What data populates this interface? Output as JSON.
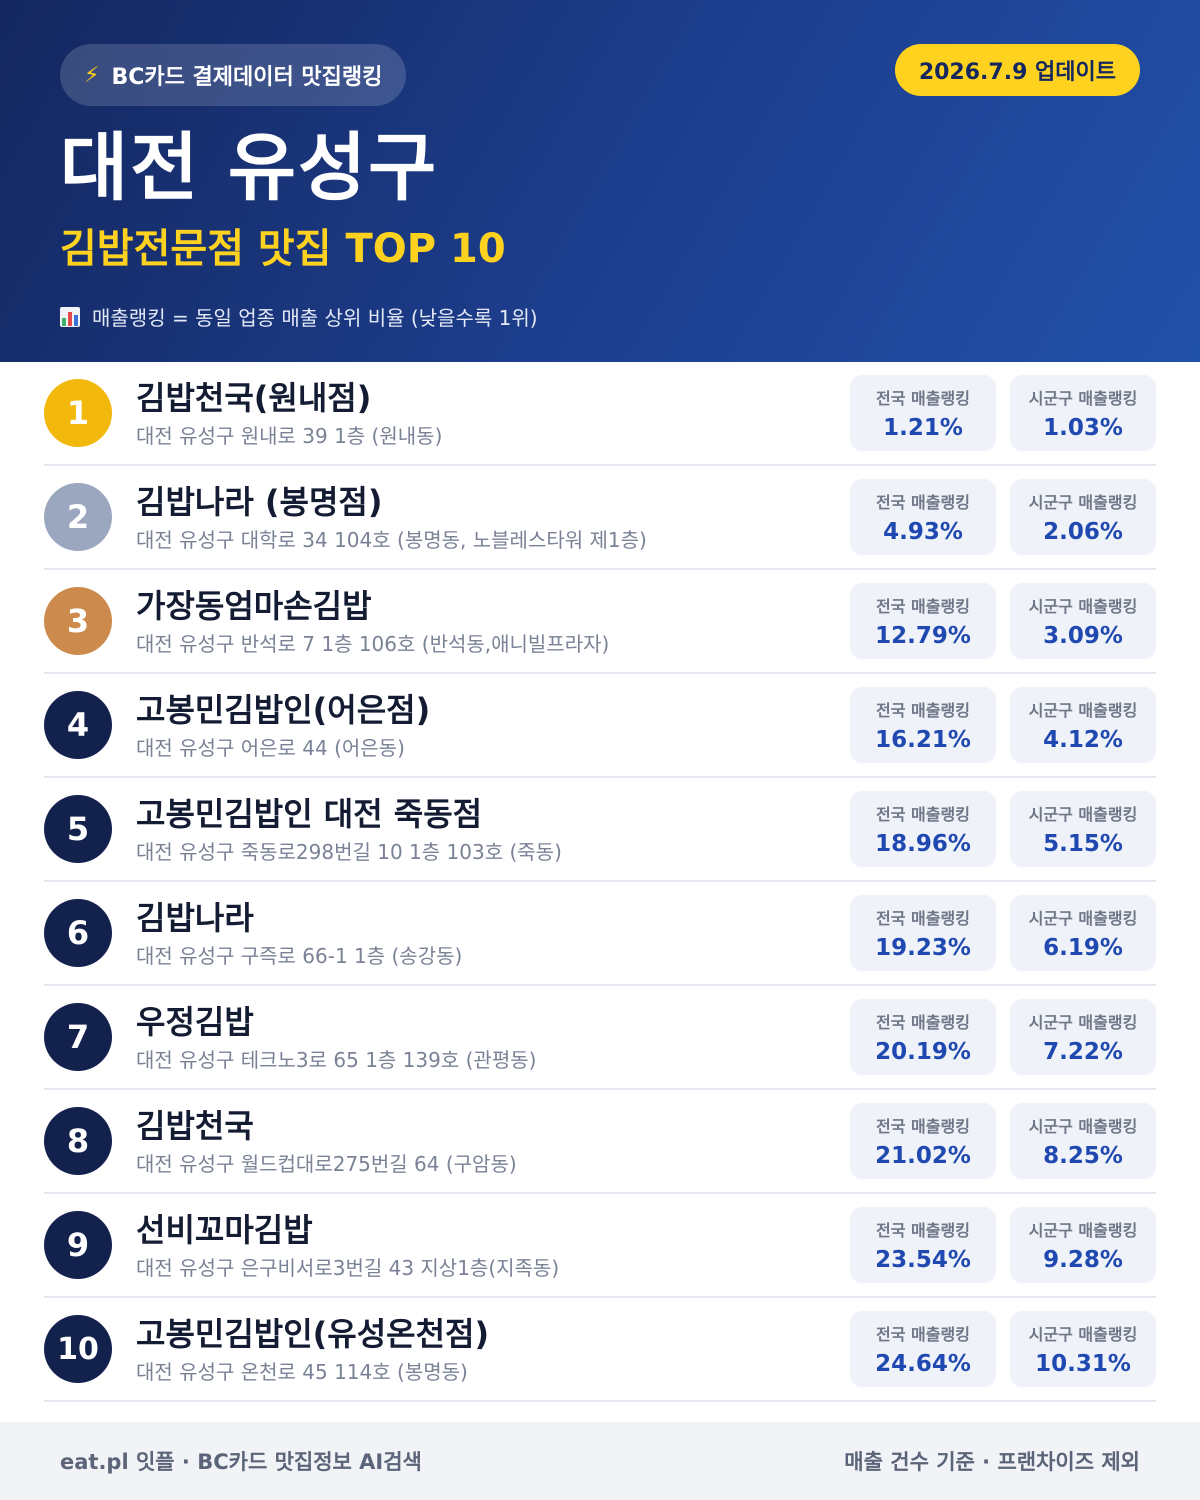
{
  "header": {
    "badge_icon": "lightning-icon",
    "badge_label": "BC카드 결제데이터 맛집랭킹",
    "update_label": "2026.7.9 업데이트",
    "region": "대전 유성구",
    "category": "김밥전문점 맛집 TOP 10",
    "note_icon": "bar-chart-icon",
    "note": "매출랭킹 = 동일 업종 매출 상위 비율 (낮을수록 1위)",
    "accent_color": "#ffd21f",
    "gradient_colors": [
      "#14275f",
      "#2150a8"
    ]
  },
  "labels": {
    "national": "전국 매출랭킹",
    "district": "시군구 매출랭킹"
  },
  "rank_colors": {
    "gold": "#f2b90c",
    "silver": "#9ba7bf",
    "bronze": "#cd8a4d",
    "default": "#13214d"
  },
  "restaurants": [
    {
      "rank": "1",
      "name": "김밥천국(원내점)",
      "address": "대전 유성구 원내로 39 1층 (원내동)",
      "national": "1.21%",
      "district": "1.03%"
    },
    {
      "rank": "2",
      "name": "김밥나라 (봉명점)",
      "address": "대전 유성구 대학로 34 104호 (봉명동, 노블레스타워 제1층)",
      "national": "4.93%",
      "district": "2.06%"
    },
    {
      "rank": "3",
      "name": "가장동엄마손김밥",
      "address": "대전 유성구 반석로 7 1층 106호 (반석동,애니빌프라자)",
      "national": "12.79%",
      "district": "3.09%"
    },
    {
      "rank": "4",
      "name": "고봉민김밥인(어은점)",
      "address": "대전 유성구 어은로 44 (어은동)",
      "national": "16.21%",
      "district": "4.12%"
    },
    {
      "rank": "5",
      "name": "고봉민김밥인 대전 죽동점",
      "address": "대전 유성구 죽동로298번길 10 1층 103호 (죽동)",
      "national": "18.96%",
      "district": "5.15%"
    },
    {
      "rank": "6",
      "name": "김밥나라",
      "address": "대전 유성구 구즉로 66-1 1층 (송강동)",
      "national": "19.23%",
      "district": "6.19%"
    },
    {
      "rank": "7",
      "name": "우정김밥",
      "address": "대전 유성구 테크노3로 65 1층 139호 (관평동)",
      "national": "20.19%",
      "district": "7.22%"
    },
    {
      "rank": "8",
      "name": "김밥천국",
      "address": "대전 유성구 월드컵대로275번길 64 (구암동)",
      "national": "21.02%",
      "district": "8.25%"
    },
    {
      "rank": "9",
      "name": "선비꼬마김밥",
      "address": "대전 유성구 은구비서로3번길 43 지상1층(지족동)",
      "national": "23.54%",
      "district": "9.28%"
    },
    {
      "rank": "10",
      "name": "고봉민김밥인(유성온천점)",
      "address": "대전 유성구 온천로 45 114호 (봉명동)",
      "national": "24.64%",
      "district": "10.31%"
    }
  ],
  "footer": {
    "left": "eat.pl 잇플 · BC카드 맛집정보 AI검색",
    "right": "매출 건수 기준 · 프랜차이즈 제외"
  }
}
